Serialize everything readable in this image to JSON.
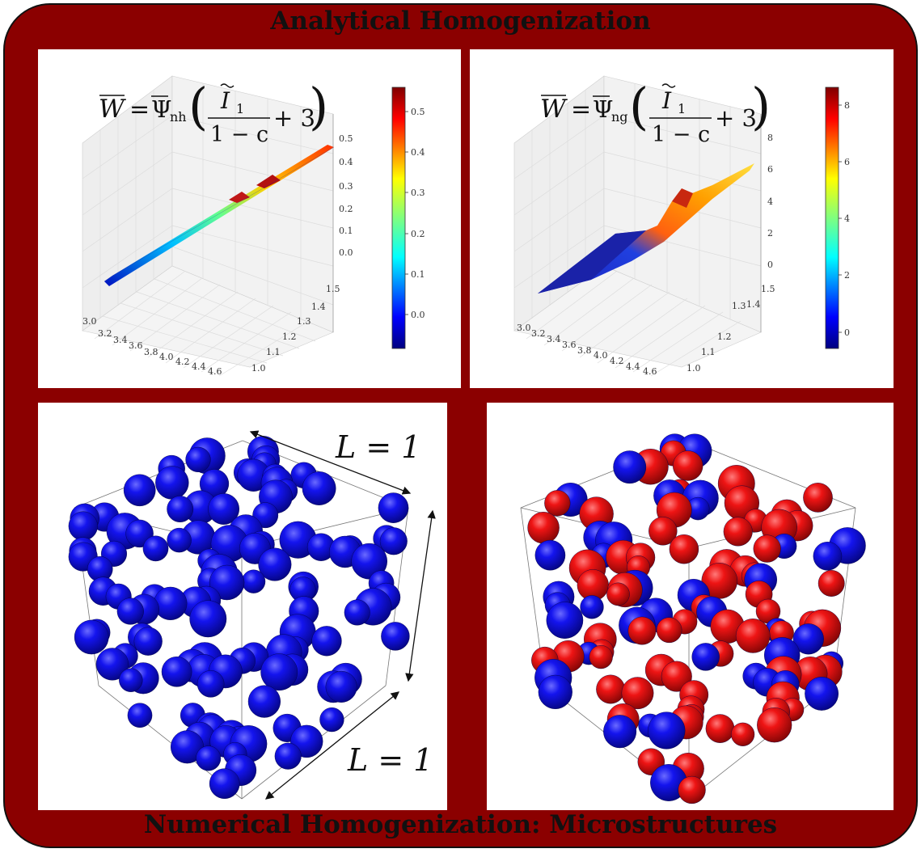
{
  "titles": {
    "top": "Analytical Homogenization",
    "bottom": "Numerical Homogenization: Microstructures"
  },
  "colors": {
    "frame": "#8b0000",
    "phase_blue": "#1010f0",
    "phase_red": "#f01010"
  },
  "chart_data": [
    {
      "type": "surface3d",
      "formula": {
        "lhs": "W",
        "rhs_symbol": "Ψ",
        "subscript": "nh",
        "numerator": "I",
        "numerator_sub": "1",
        "denominator": "1 − c",
        "tail": "+ 3"
      },
      "x_ticks": [
        "3.0",
        "3.2",
        "3.4",
        "3.6",
        "3.8",
        "4.0",
        "4.2",
        "4.4",
        "4.6"
      ],
      "y_ticks": [
        "1.0",
        "1.1",
        "1.2",
        "1.3",
        "1.4",
        "1.5"
      ],
      "z_ticks": [
        "0.0",
        "0.1",
        "0.2",
        "0.3",
        "0.4",
        "0.5"
      ],
      "colorbar_ticks": [
        "0.5",
        "0.4",
        "0.3",
        "0.2",
        "0.1",
        "0.0",
        "-0.1"
      ],
      "zlim": [
        -0.07,
        0.55
      ],
      "colormap": "jet"
    },
    {
      "type": "surface3d",
      "formula": {
        "lhs": "W",
        "rhs_symbol": "Ψ",
        "subscript": "ng",
        "numerator": "I",
        "numerator_sub": "1",
        "denominator": "1 − c",
        "tail": "+ 3"
      },
      "x_ticks": [
        "3.0",
        "3.2",
        "3.4",
        "3.6",
        "3.8",
        "4.0",
        "4.2",
        "4.4",
        "4.6"
      ],
      "y_ticks": [
        "1.0",
        "1.1",
        "1.2",
        "1.3",
        "1.4",
        "1.5"
      ],
      "z_ticks": [
        "0",
        "2",
        "4",
        "6",
        "8"
      ],
      "colorbar_ticks": [
        "8",
        "6",
        "4",
        "2",
        "0"
      ],
      "zlim": [
        -0.6,
        8.7
      ],
      "colormap": "jet"
    }
  ],
  "microstructures": {
    "left": {
      "length_top": "L = 1",
      "length_bottom": "L = 1",
      "phases": [
        "blue"
      ]
    },
    "right": {
      "phases": [
        "blue",
        "red"
      ]
    }
  }
}
